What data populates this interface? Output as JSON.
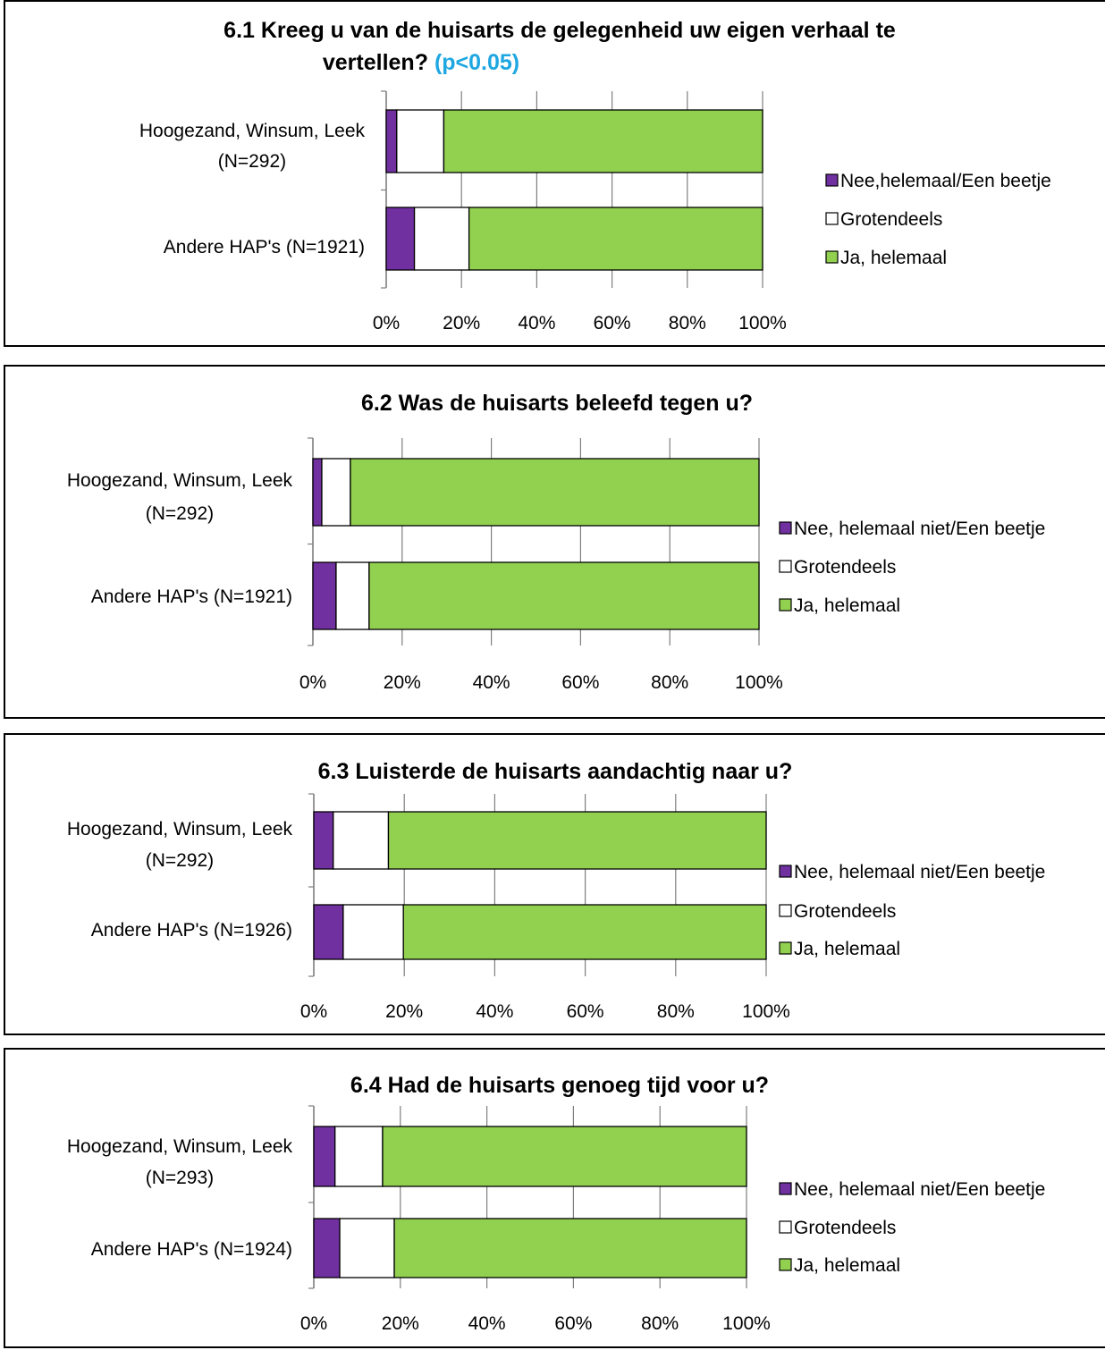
{
  "colors": {
    "nee": "#7030a0",
    "grotendeels": "#ffffff",
    "ja": "#92d050",
    "p_value": "#1ea7e1",
    "grid": "#7f7f7f"
  },
  "chart_data": [
    {
      "type": "bar",
      "orientation": "horizontal",
      "stacked": "percent",
      "title": "6.1 Kreeg u van de huisarts de gelegenheid uw eigen verhaal te vertellen?",
      "title_note": "(p<0.05)",
      "categories": [
        "Hoogezand, Winsum, Leek (N=292)",
        "Andere HAP's (N=1921)"
      ],
      "series": [
        {
          "name": "Nee,helemaal/Een beetje",
          "color": "#7030a0",
          "values": [
            2.8,
            7.5
          ]
        },
        {
          "name": "Grotendeels",
          "color": "#ffffff",
          "values": [
            12.5,
            14.5
          ]
        },
        {
          "name": "Ja, helemaal",
          "color": "#92d050",
          "values": [
            84.7,
            78.0
          ]
        }
      ],
      "xlim": [
        0,
        100
      ],
      "xticks": [
        "0%",
        "20%",
        "40%",
        "60%",
        "80%",
        "100%"
      ],
      "grid": true,
      "legend": "right"
    },
    {
      "type": "bar",
      "orientation": "horizontal",
      "stacked": "percent",
      "title": "6.2 Was de huisarts beleefd tegen u?",
      "categories": [
        "Hoogezand, Winsum, Leek (N=292)",
        "Andere HAP's (N=1921)"
      ],
      "series": [
        {
          "name": "Nee, helemaal niet/Een beetje",
          "color": "#7030a0",
          "values": [
            2.0,
            5.2
          ]
        },
        {
          "name": "Grotendeels",
          "color": "#ffffff",
          "values": [
            6.4,
            7.4
          ]
        },
        {
          "name": "Ja, helemaal",
          "color": "#92d050",
          "values": [
            91.6,
            87.4
          ]
        }
      ],
      "xlim": [
        0,
        100
      ],
      "xticks": [
        "0%",
        "20%",
        "40%",
        "60%",
        "80%",
        "100%"
      ],
      "grid": true,
      "legend": "right"
    },
    {
      "type": "bar",
      "orientation": "horizontal",
      "stacked": "percent",
      "title": "6.3 Luisterde de huisarts aandachtig naar u?",
      "categories": [
        "Hoogezand, Winsum, Leek (N=292)",
        "Andere HAP's (N=1926)"
      ],
      "series": [
        {
          "name": "Nee, helemaal niet/Een beetje",
          "color": "#7030a0",
          "values": [
            4.3,
            6.5
          ]
        },
        {
          "name": "Grotendeels",
          "color": "#ffffff",
          "values": [
            12.2,
            13.3
          ]
        },
        {
          "name": "Ja, helemaal",
          "color": "#92d050",
          "values": [
            83.5,
            80.2
          ]
        }
      ],
      "xlim": [
        0,
        100
      ],
      "xticks": [
        "0%",
        "20%",
        "40%",
        "60%",
        "80%",
        "100%"
      ],
      "grid": true,
      "legend": "right"
    },
    {
      "type": "bar",
      "orientation": "horizontal",
      "stacked": "percent",
      "title": "6.4 Had de huisarts genoeg tijd voor u?",
      "categories": [
        "Hoogezand, Winsum, Leek (N=293)",
        "Andere HAP's (N=1924)"
      ],
      "series": [
        {
          "name": "Nee, helemaal niet/Een beetje",
          "color": "#7030a0",
          "values": [
            4.9,
            6.0
          ]
        },
        {
          "name": "Grotendeels",
          "color": "#ffffff",
          "values": [
            11.0,
            12.6
          ]
        },
        {
          "name": "Ja, helemaal",
          "color": "#92d050",
          "values": [
            84.1,
            81.4
          ]
        }
      ],
      "xlim": [
        0,
        100
      ],
      "xticks": [
        "0%",
        "20%",
        "40%",
        "60%",
        "80%",
        "100%"
      ],
      "grid": true,
      "legend": "right"
    }
  ]
}
